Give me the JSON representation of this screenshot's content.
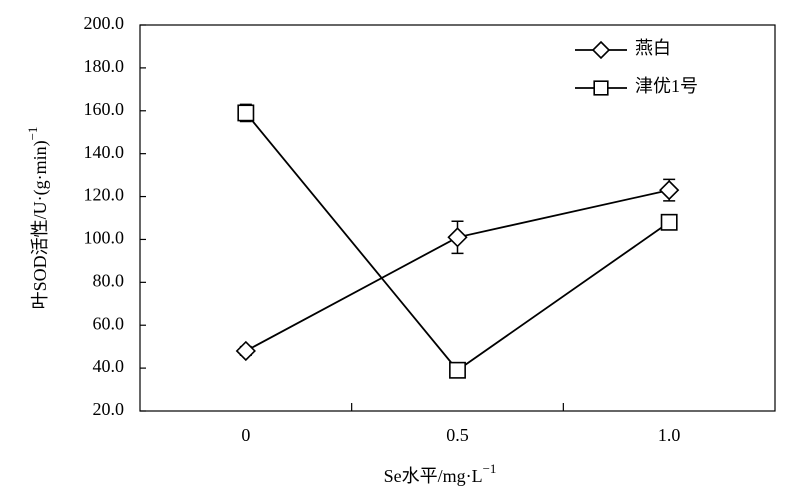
{
  "chart_data": {
    "type": "line",
    "y_label": "叶SOD活性/U·(g·min)",
    "y_label_sup": "−1",
    "x_label": "Se水平/mg·L",
    "x_label_sup": "−1",
    "categories": [
      "0",
      "0.5",
      "1.0"
    ],
    "series": [
      {
        "name": "燕白",
        "marker": "diamond",
        "color": "#000000",
        "values": [
          48,
          101,
          123
        ],
        "errors": [
          2,
          7.5,
          5
        ]
      },
      {
        "name": "津优1号",
        "marker": "square",
        "color": "#000000",
        "values": [
          159,
          39,
          108
        ],
        "errors": [
          4,
          3,
          2
        ]
      }
    ],
    "ylim": [
      20,
      200
    ],
    "yticks": [
      {
        "value": 20,
        "label": "20.0"
      },
      {
        "value": 40,
        "label": "40.0"
      },
      {
        "value": 60,
        "label": "60.0"
      },
      {
        "value": 80,
        "label": "80.0"
      },
      {
        "value": 100,
        "label": "100.0"
      },
      {
        "value": 120,
        "label": "120.0"
      },
      {
        "value": 140,
        "label": "140.0"
      },
      {
        "value": 160,
        "label": "160.0"
      },
      {
        "value": 180,
        "label": "180.0"
      },
      {
        "value": 200,
        "label": "200.0"
      }
    ],
    "legend": "upper right",
    "grid": false
  }
}
